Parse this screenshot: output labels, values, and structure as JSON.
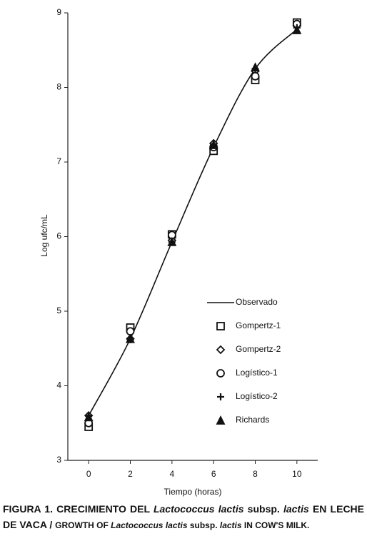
{
  "chart_data": {
    "type": "line",
    "x_label": "Tiempo (horas)",
    "y_label": "Log ufc/mL",
    "x": [
      0,
      2,
      4,
      6,
      8,
      10
    ],
    "xlim": [
      -1,
      11
    ],
    "xticks": [
      0,
      2,
      4,
      6,
      8,
      10
    ],
    "ylim": [
      3,
      9
    ],
    "yticks": [
      3,
      4,
      5,
      6,
      7,
      8,
      9
    ],
    "series": [
      {
        "name": "Observado",
        "color": "#111111",
        "marker": "line",
        "values": [
          3.6,
          4.63,
          5.93,
          7.2,
          8.25,
          8.78
        ]
      },
      {
        "name": "Gompertz-1",
        "color": "#111111",
        "marker": "square",
        "values": [
          3.45,
          4.78,
          6.03,
          7.15,
          8.1,
          8.87
        ]
      },
      {
        "name": "Gompertz-2",
        "color": "#111111",
        "marker": "diamond",
        "values": [
          3.6,
          4.63,
          5.95,
          7.25,
          8.22,
          8.83
        ]
      },
      {
        "name": "Logístico-1",
        "color": "#111111",
        "marker": "circle",
        "values": [
          3.5,
          4.73,
          6.02,
          7.2,
          8.15,
          8.85
        ]
      },
      {
        "name": "Logístico-2",
        "color": "#111111",
        "marker": "plus",
        "values": [
          3.6,
          4.62,
          5.93,
          7.24,
          8.25,
          8.8
        ]
      },
      {
        "name": "Richards",
        "color": "#111111",
        "marker": "triangle",
        "values": [
          3.58,
          4.63,
          5.93,
          7.23,
          8.27,
          8.77
        ]
      }
    ]
  },
  "caption": [
    "FIGURA 1. CRECIMIENTO DEL ",
    "Lactococcus lactis",
    " subsp. ",
    "lactis",
    " EN LECHE DE VACA / ",
    "GROWTH OF ",
    "Lactococcus lactis",
    " subsp. ",
    "lactis",
    " IN COW'S MILK."
  ]
}
